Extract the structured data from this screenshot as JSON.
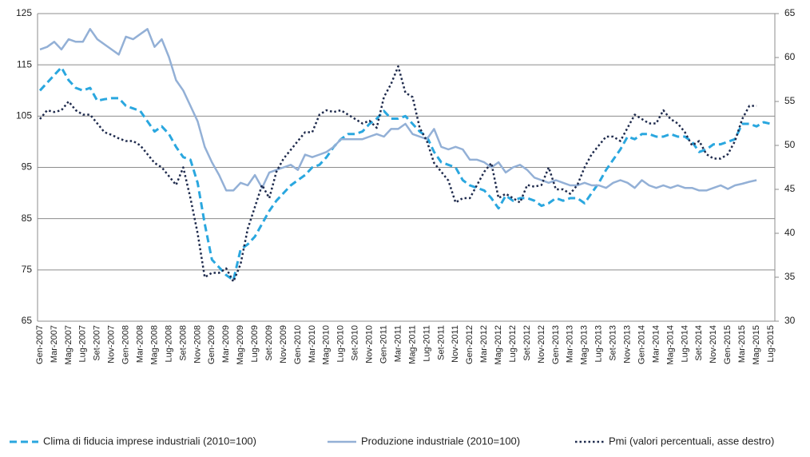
{
  "chart_data": {
    "type": "line",
    "categories": [
      "Gen-2007",
      null,
      "Mar-2007",
      null,
      "Mag-2007",
      null,
      "Lug-2007",
      null,
      "Set-2007",
      null,
      "Nov-2007",
      null,
      "Gen-2008",
      null,
      "Mar-2008",
      null,
      "Mag-2008",
      null,
      "Lug-2008",
      null,
      "Set-2008",
      null,
      "Nov-2008",
      null,
      "Gen-2009",
      null,
      "Mar-2009",
      null,
      "Mag-2009",
      null,
      "Lug-2009",
      null,
      "Set-2009",
      null,
      "Nov-2009",
      null,
      "Gen-2010",
      null,
      "Mar-2010",
      null,
      "Mag-2010",
      null,
      "Lug-2010",
      null,
      "Set-2010",
      null,
      "Nov-2010",
      null,
      "Gen-2011",
      null,
      "Mar-2011",
      null,
      "Mag-2011",
      null,
      "Lug-2011",
      null,
      "Set-2011",
      null,
      "Nov-2011",
      null,
      "Gen-2012",
      null,
      "Mar-2012",
      null,
      "Mag-2012",
      null,
      "Lug-2012",
      null,
      "Set-2012",
      null,
      "Nov-2012",
      null,
      "Gen-2013",
      null,
      "Mar-2013",
      null,
      "Mag-2013",
      null,
      "Lug-2013",
      null,
      "Set-2013",
      null,
      "Nov-2013",
      null,
      "Gen-2014",
      null,
      "Mar-2014",
      null,
      "Mag-2014",
      null,
      "Lug-2014",
      null,
      "Set-2014",
      null,
      "Nov-2014",
      null,
      "Gen-2015",
      null,
      "Mar-2015",
      null,
      "Mag-2015",
      null,
      "Lug-2015"
    ],
    "series": [
      {
        "name": "Clima di fiducia imprese industriali (2010=100)",
        "color": "#2aa7df",
        "style": "dashed",
        "values": [
          110,
          111.5,
          113,
          114.5,
          112,
          110.5,
          110,
          110.5,
          108,
          108.3,
          108.5,
          108.5,
          107,
          106.5,
          106,
          104,
          102,
          103,
          101.5,
          99,
          97,
          96.5,
          92,
          84,
          77,
          75.5,
          74,
          73,
          79,
          80,
          81.5,
          84,
          86.5,
          88.5,
          90,
          91.5,
          92.5,
          93.5,
          95,
          95.5,
          97,
          99,
          100.5,
          101.5,
          101.5,
          102,
          103.5,
          104.5,
          106,
          104.5,
          104.5,
          105,
          103.5,
          102,
          101,
          98,
          96,
          95.5,
          95,
          92.5,
          91.5,
          91,
          90.5,
          89,
          87,
          89.5,
          88.5,
          89,
          89,
          88.5,
          87.5,
          88,
          89,
          88.5,
          89,
          89,
          88,
          90,
          92,
          94.5,
          96.5,
          98.5,
          101,
          100.5,
          101.5,
          101.5,
          101,
          101,
          101.5,
          101,
          101,
          100,
          98,
          98.5,
          99.5,
          99.5,
          100,
          100.5,
          103.5,
          103.5,
          103,
          103.8,
          103.5
        ]
      },
      {
        "name": "Produzione industriale (2010=100)",
        "color": "#93b0d6",
        "style": "solid",
        "values": [
          118,
          118.5,
          119.5,
          118,
          120,
          119.5,
          119.5,
          122,
          120,
          119,
          118,
          117,
          120.5,
          120,
          121,
          122,
          118.5,
          120,
          116.5,
          112,
          110,
          107,
          104,
          99,
          96,
          93.5,
          90.5,
          90.5,
          92,
          91.5,
          93.5,
          91,
          94,
          94.5,
          95,
          95.5,
          94.5,
          97.5,
          97,
          97.5,
          98,
          99,
          100.5,
          100.5,
          100.5,
          100.5,
          101,
          101.5,
          101,
          102.5,
          102.5,
          103.5,
          101.5,
          101,
          100.5,
          102.5,
          99,
          98.5,
          99,
          98.5,
          96.5,
          96.5,
          96,
          95,
          96,
          94,
          95,
          95.5,
          94.5,
          93,
          92.5,
          92,
          92.5,
          92,
          91.5,
          91.5,
          92,
          91.5,
          91.5,
          91,
          92,
          92.5,
          92,
          91,
          92.5,
          91.5,
          91,
          91.5,
          91,
          91.5,
          91,
          91,
          90.5,
          90.5,
          91,
          91.5,
          90.8,
          91.5,
          91.8,
          92.2,
          92.5,
          null,
          null
        ]
      },
      {
        "name": "Pmi (valori percentuali, asse destro)",
        "color": "#1f2b4d",
        "style": "dotted",
        "axis": "y2",
        "values": [
          53,
          54,
          53.8,
          54,
          55,
          54,
          53.5,
          53.5,
          52.5,
          51.5,
          51.2,
          50.8,
          50.5,
          50.5,
          50,
          49,
          48,
          47.5,
          46.5,
          45.5,
          47.5,
          44,
          40,
          35,
          35.5,
          35.5,
          36,
          34.5,
          36.5,
          40.5,
          43,
          45.5,
          44,
          47,
          48.5,
          49.5,
          50.5,
          51.5,
          51.5,
          53.5,
          54,
          53.8,
          54,
          53.5,
          53,
          52.5,
          52.8,
          52,
          55.5,
          57,
          59,
          56,
          55.5,
          52,
          50.5,
          48,
          47,
          46,
          43.5,
          44,
          44,
          45.5,
          47,
          48,
          44,
          44.5,
          44,
          43.5,
          45.5,
          45.3,
          45.5,
          47.5,
          45,
          45,
          44.5,
          45.5,
          47.5,
          49,
          50,
          51,
          51,
          50.5,
          52,
          53.5,
          53,
          52.5,
          52.5,
          54,
          53,
          52.5,
          51.5,
          50,
          50.5,
          49,
          48.5,
          48.5,
          49,
          50.5,
          53,
          54.5,
          54.5,
          null,
          null
        ]
      }
    ],
    "ylim": [
      65,
      125
    ],
    "yticks": [
      65,
      75,
      85,
      95,
      105,
      115,
      125
    ],
    "y2lim": [
      30,
      65
    ],
    "y2ticks": [
      30,
      35,
      40,
      45,
      50,
      55,
      60,
      65
    ],
    "grid": true,
    "legend": "bottom"
  }
}
